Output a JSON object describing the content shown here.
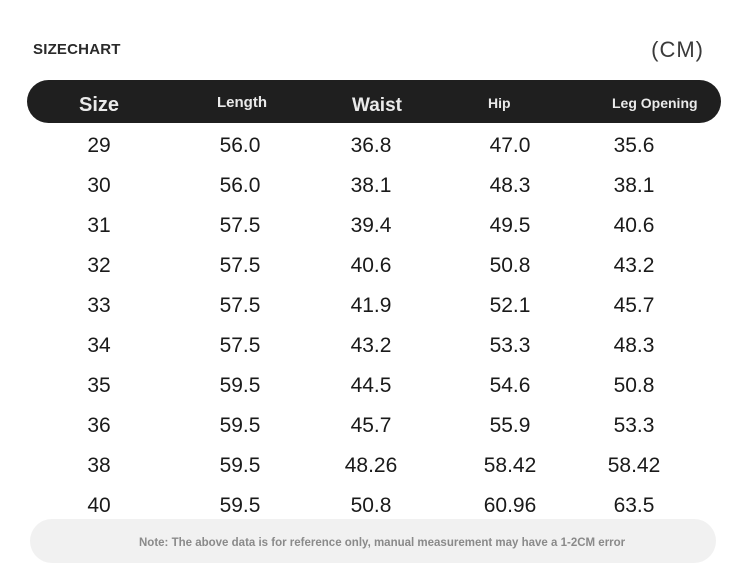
{
  "title": "SIZECHART",
  "unit": "(CM)",
  "columns": [
    "Size",
    "Length",
    "Waist",
    "Hip",
    "Leg Opening"
  ],
  "rows": [
    [
      "29",
      "56.0",
      "36.8",
      "47.0",
      "35.6"
    ],
    [
      "30",
      "56.0",
      "38.1",
      "48.3",
      "38.1"
    ],
    [
      "31",
      "57.5",
      "39.4",
      "49.5",
      "40.6"
    ],
    [
      "32",
      "57.5",
      "40.6",
      "50.8",
      "43.2"
    ],
    [
      "33",
      "57.5",
      "41.9",
      "52.1",
      "45.7"
    ],
    [
      "34",
      "57.5",
      "43.2",
      "53.3",
      "48.3"
    ],
    [
      "35",
      "59.5",
      "44.5",
      "54.6",
      "50.8"
    ],
    [
      "36",
      "59.5",
      "45.7",
      "55.9",
      "53.3"
    ],
    [
      "38",
      "59.5",
      "48.26",
      "58.42",
      "58.42"
    ],
    [
      "40",
      "59.5",
      "50.8",
      "60.96",
      "63.5"
    ]
  ],
  "note": "Note: The above data is for reference only, manual measurement may have a 1-2CM error",
  "colors": {
    "header_bg": "#1f1f1f",
    "header_text": "#eaeaea",
    "note_bg": "#f1f1f1",
    "note_text": "#8a8a8a"
  }
}
